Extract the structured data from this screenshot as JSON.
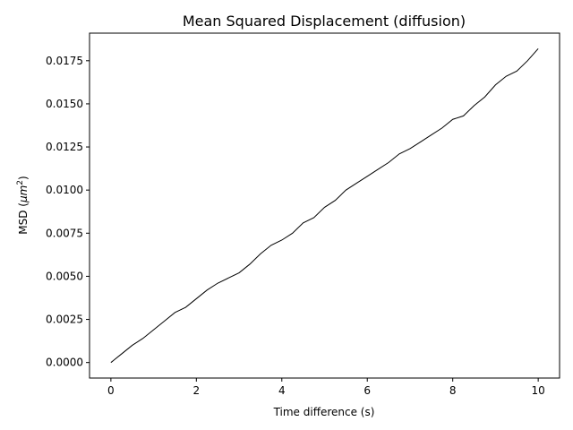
{
  "chart_data": {
    "type": "line",
    "title": "Mean Squared Displacement (diffusion)",
    "xlabel": "Time difference (s)",
    "ylabel_prefix": "MSD (",
    "ylabel_mu": "μ",
    "ylabel_unit": "m",
    "ylabel_sup": "2",
    "ylabel_suffix": ")",
    "xlim": [
      -0.5,
      10.5
    ],
    "ylim": [
      -0.0009,
      0.0191
    ],
    "xticks": [
      0,
      2,
      4,
      6,
      8,
      10
    ],
    "xtick_labels": [
      "0",
      "2",
      "4",
      "6",
      "8",
      "10"
    ],
    "yticks": [
      0.0,
      0.0025,
      0.005,
      0.0075,
      0.01,
      0.0125,
      0.015,
      0.0175
    ],
    "ytick_labels": [
      "0.0000",
      "0.0025",
      "0.0050",
      "0.0075",
      "0.0100",
      "0.0125",
      "0.0150",
      "0.0175"
    ],
    "grid": false,
    "color": "#000000",
    "series": [
      {
        "x": [
          0.0,
          0.25,
          0.5,
          0.75,
          1.0,
          1.25,
          1.5,
          1.75,
          2.0,
          2.25,
          2.5,
          2.75,
          3.0,
          3.25,
          3.5,
          3.75,
          4.0,
          4.25,
          4.5,
          4.75,
          5.0,
          5.25,
          5.5,
          5.75,
          6.0,
          6.25,
          6.5,
          6.75,
          7.0,
          7.25,
          7.5,
          7.75,
          8.0,
          8.25,
          8.5,
          8.75,
          9.0,
          9.25,
          9.5,
          9.75,
          10.0
        ],
        "y": [
          0.0,
          0.0005,
          0.001,
          0.0014,
          0.0019,
          0.0024,
          0.0029,
          0.0032,
          0.0037,
          0.0042,
          0.0046,
          0.0049,
          0.0052,
          0.0057,
          0.0063,
          0.0068,
          0.0071,
          0.0075,
          0.0081,
          0.0084,
          0.009,
          0.0094,
          0.01,
          0.0104,
          0.0108,
          0.0112,
          0.0116,
          0.0121,
          0.0124,
          0.0128,
          0.0132,
          0.0136,
          0.0141,
          0.0143,
          0.0149,
          0.0154,
          0.0161,
          0.0166,
          0.0169,
          0.0175,
          0.0182
        ]
      }
    ]
  }
}
